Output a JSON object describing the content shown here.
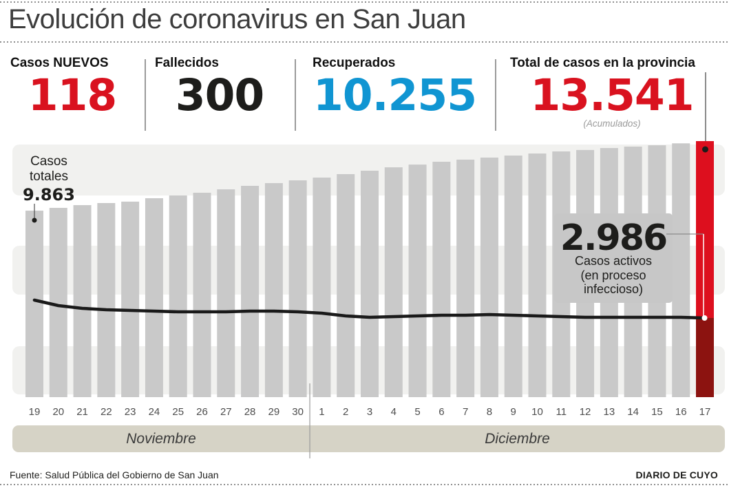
{
  "header": {
    "title": "Evolución de coronavirus en San Juan"
  },
  "stats": [
    {
      "label": "Casos NUEVOS",
      "value": "118",
      "color": "#d9121f"
    },
    {
      "label": "Fallecidos",
      "value": "300",
      "color": "#1d1d1b"
    },
    {
      "label": "Recuperados",
      "value": "10.255",
      "color": "#1095d2"
    },
    {
      "label": "Total de casos en la provincia",
      "value": "13.541",
      "color": "#d9121f",
      "note": "(Acumulados)"
    }
  ],
  "footer": {
    "source": "Fuente: Salud Pública del Gobierno de San Juan",
    "brand": "DIARIO DE CUYO"
  },
  "chart_data": {
    "type": "bar",
    "title": "Evolución de coronavirus en San Juan",
    "xlabel": "",
    "ylabel": "",
    "ylim": [
      0,
      13900
    ],
    "grid": "horizontal-bands",
    "legend": "none",
    "categories": [
      "19",
      "20",
      "21",
      "22",
      "23",
      "24",
      "25",
      "26",
      "27",
      "28",
      "29",
      "30",
      "1",
      "2",
      "3",
      "4",
      "5",
      "6",
      "7",
      "8",
      "9",
      "10",
      "11",
      "12",
      "13",
      "14",
      "15",
      "16",
      "17"
    ],
    "month_groups": [
      {
        "label": "Noviembre",
        "days": 12
      },
      {
        "label": "Diciembre",
        "days": 17
      }
    ],
    "series": [
      {
        "name": "Casos totales",
        "type": "bar",
        "values": [
          9863,
          10010,
          10155,
          10265,
          10340,
          10520,
          10665,
          10810,
          10990,
          11175,
          11320,
          11465,
          11610,
          11795,
          11975,
          12155,
          12300,
          12450,
          12560,
          12670,
          12775,
          12885,
          12995,
          13070,
          13175,
          13250,
          13320,
          13423,
          13541
        ]
      },
      {
        "name": "Casos activos (en proceso infeccioso)",
        "type": "line",
        "values": [
          3298,
          3202,
          3154,
          3130,
          3118,
          3106,
          3094,
          3094,
          3094,
          3106,
          3106,
          3094,
          3070,
          3022,
          2998,
          3010,
          3022,
          3034,
          3034,
          3046,
          3034,
          3022,
          3010,
          2998,
          2998,
          2998,
          2998,
          2998,
          2986
        ]
      }
    ],
    "annotations": {
      "first_total": {
        "label_lines": [
          "Casos",
          "totales"
        ],
        "value": "9.863"
      },
      "last_active": {
        "value": "2.986",
        "label_lines": [
          "Casos activos",
          "(en proceso",
          "infeccioso)"
        ]
      },
      "highlight_day": "17"
    },
    "colors": {
      "bar": "#c9c9c9",
      "bar_highlight": "#dd0f1e",
      "bar_highlight_dark": "#8c1310",
      "line": "#1a1a1a",
      "band": "#f1f1ef",
      "month_band": "#d6d3c6",
      "annotation_box": "#c7c7c7",
      "callout": "#8a8a8a",
      "value_red": "#d9121f"
    }
  }
}
